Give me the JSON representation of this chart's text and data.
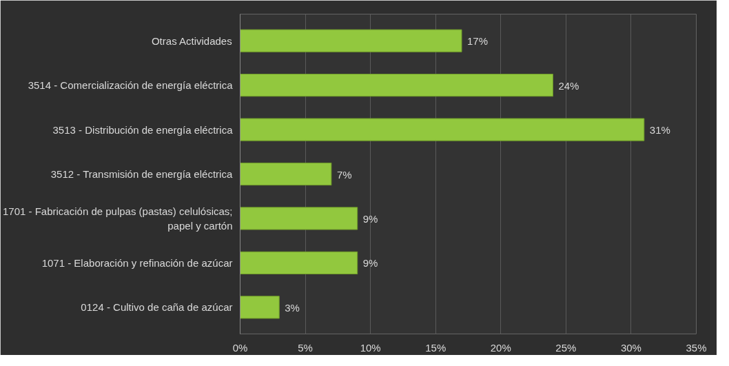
{
  "chart_data": {
    "type": "bar",
    "orientation": "horizontal",
    "categories": [
      "Otras Actividades",
      "3514 - Comercialización de energía eléctrica",
      "3513 - Distribución de energía eléctrica",
      "3512 - Transmisión de energía eléctrica",
      "1701 - Fabricación de pulpas (pastas) celulósicas; papel y cartón",
      "1071 - Elaboración y refinación de azúcar",
      "0124 - Cultivo de caña de azúcar"
    ],
    "values": [
      17,
      24,
      31,
      7,
      9,
      9,
      3
    ],
    "value_labels": [
      "17%",
      "24%",
      "31%",
      "7%",
      "9%",
      "9%",
      "3%"
    ],
    "color": "#92c83e",
    "xlim": [
      0,
      35
    ],
    "xticks": [
      {
        "value": 0,
        "label": "0%"
      },
      {
        "value": 5,
        "label": "5%"
      },
      {
        "value": 10,
        "label": "10%"
      },
      {
        "value": 15,
        "label": "15%"
      },
      {
        "value": 20,
        "label": "20%"
      },
      {
        "value": 25,
        "label": "25%"
      },
      {
        "value": 30,
        "label": "30%"
      },
      {
        "value": 35,
        "label": "35%"
      }
    ],
    "grid": "x"
  }
}
